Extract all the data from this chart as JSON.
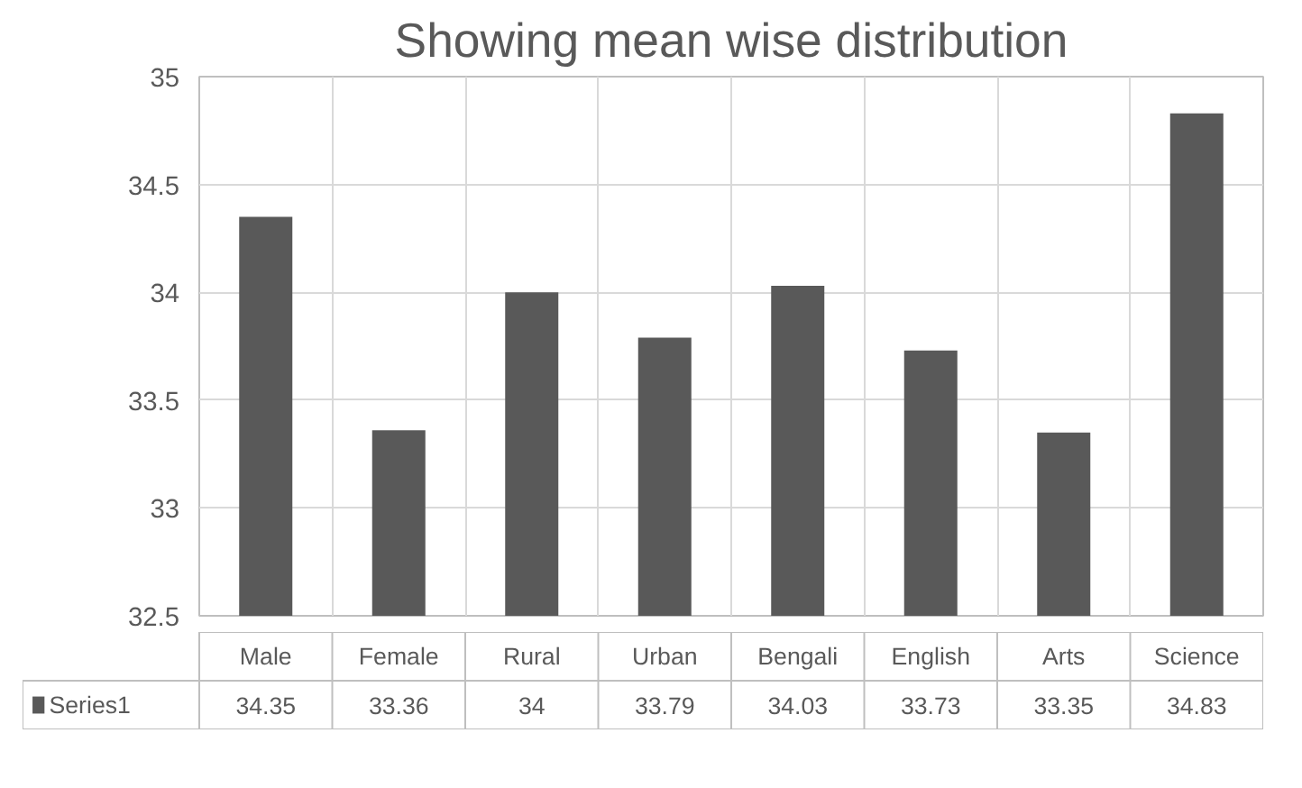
{
  "chart_data": {
    "type": "bar",
    "title": "Showing mean wise distribution",
    "categories": [
      "Male",
      "Female",
      "Rural",
      "Urban",
      "Bengali",
      "English",
      "Arts",
      "Science"
    ],
    "series": [
      {
        "name": "Series1",
        "color": "#595959",
        "values": [
          34.35,
          33.36,
          34,
          33.79,
          34.03,
          33.73,
          33.35,
          34.83
        ]
      }
    ],
    "ylim": [
      32.5,
      35
    ],
    "yticks": [
      32.5,
      33,
      33.5,
      34,
      34.5,
      35
    ],
    "grid": true,
    "data_labels": true,
    "legend": "bottom"
  }
}
